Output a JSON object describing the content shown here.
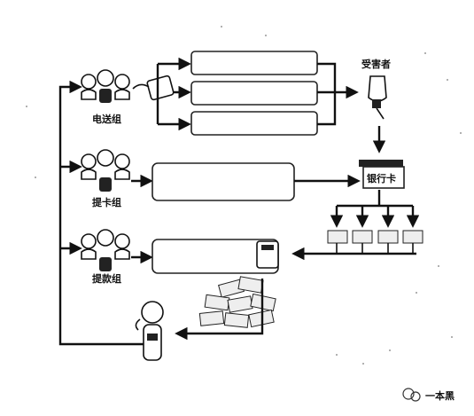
{
  "groups": {
    "dianmai": "电送组",
    "tika": "提卡组",
    "tikuan": "提款组"
  },
  "victim_label": "受害者",
  "bank_card_label": "银行卡",
  "watermark_text": "一本黑",
  "colors": {
    "stroke": "#111111",
    "background": "#ffffff"
  }
}
